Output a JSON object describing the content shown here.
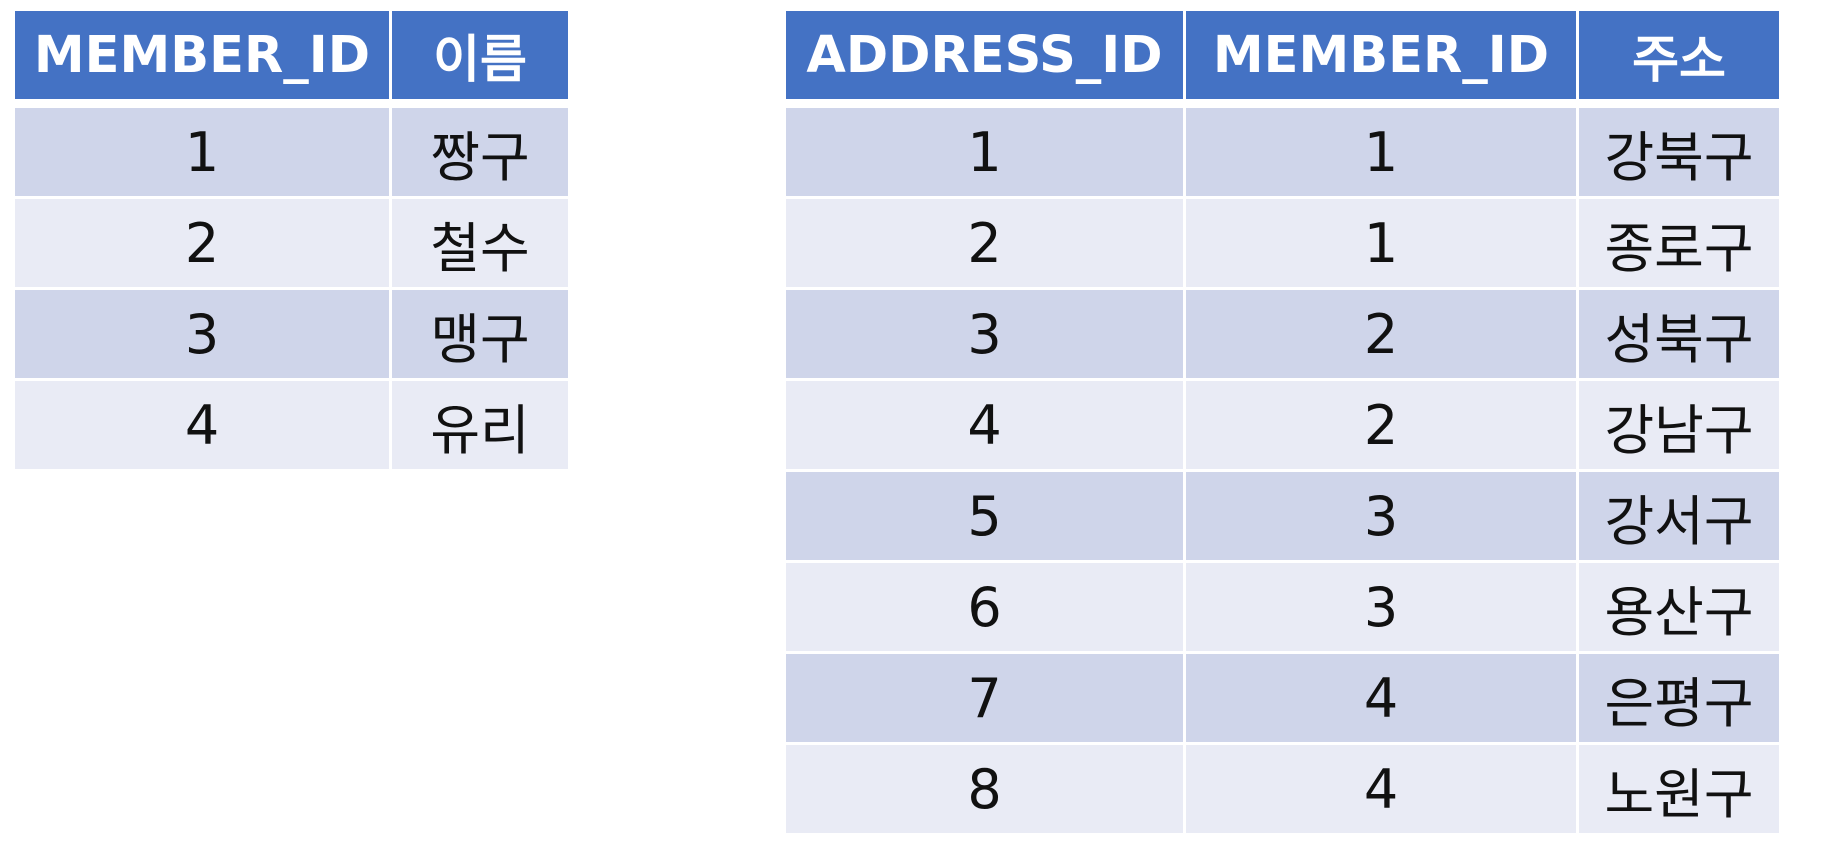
{
  "member_table": {
    "headers": [
      "MEMBER_ID",
      "이름"
    ],
    "rows": [
      [
        "1",
        "짱구"
      ],
      [
        "2",
        "철수"
      ],
      [
        "3",
        "맹구"
      ],
      [
        "4",
        "유리"
      ]
    ]
  },
  "address_table": {
    "headers": [
      "ADDRESS_ID",
      "MEMBER_ID",
      "주소"
    ],
    "rows": [
      [
        "1",
        "1",
        "강북구"
      ],
      [
        "2",
        "1",
        "종로구"
      ],
      [
        "3",
        "2",
        "성북구"
      ],
      [
        "4",
        "2",
        "강남구"
      ],
      [
        "5",
        "3",
        "강서구"
      ],
      [
        "6",
        "3",
        "용산구"
      ],
      [
        "7",
        "4",
        "은평구"
      ],
      [
        "8",
        "4",
        "노원구"
      ]
    ]
  },
  "colors": {
    "header_bg": "#4472c4",
    "row_dark": "#cfd5ea",
    "row_light": "#e9ebf5"
  }
}
